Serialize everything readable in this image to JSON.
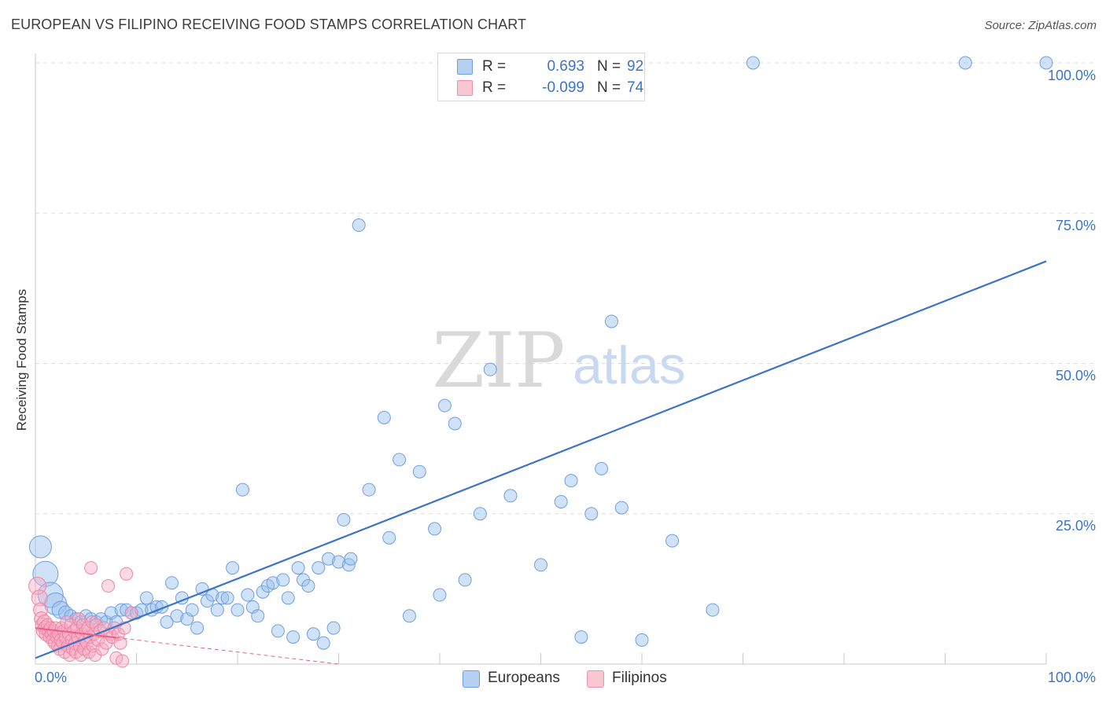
{
  "header": {
    "title": "EUROPEAN VS FILIPINO RECEIVING FOOD STAMPS CORRELATION CHART",
    "source": "Source: ZipAtlas.com"
  },
  "watermark": {
    "zip": "ZIP",
    "atlas": "atlas"
  },
  "legend": {
    "r_label": "R =",
    "n_label": "N =",
    "rows": [
      {
        "r": "0.693",
        "n": "92",
        "fill": "#b6d0f2",
        "stroke": "#6f9ee0"
      },
      {
        "r": "-0.099",
        "n": "74",
        "fill": "#f9c6d3",
        "stroke": "#ef8faa"
      }
    ]
  },
  "bottom_legend": {
    "items": [
      {
        "label": "Europeans",
        "fill": "#b6d0f2",
        "stroke": "#6f9ee0"
      },
      {
        "label": "Filipinos",
        "fill": "#f9c6d3",
        "stroke": "#ef8faa"
      }
    ]
  },
  "chart_data": {
    "type": "scatter",
    "title": "EUROPEAN VS FILIPINO RECEIVING FOOD STAMPS CORRELATION CHART",
    "xlabel": "",
    "ylabel": "Receiving Food Stamps",
    "xlim": [
      0,
      100
    ],
    "ylim": [
      0,
      100
    ],
    "x_ticks": [
      "0.0%",
      "100.0%"
    ],
    "y_ticks": [
      {
        "value": 25,
        "label": "25.0%"
      },
      {
        "value": 50,
        "label": "50.0%"
      },
      {
        "value": 75,
        "label": "75.0%"
      },
      {
        "value": 100,
        "label": "100.0%"
      }
    ],
    "grid": true,
    "legend_position": "top-center",
    "colors": {
      "europeans": "#3b73c8",
      "filipinos": "#e8608a"
    },
    "series": [
      {
        "name": "Europeans",
        "r": 0.693,
        "n": 92,
        "trend": {
          "x": [
            0,
            100
          ],
          "y": [
            1,
            67
          ]
        },
        "points": [
          {
            "x": 0.5,
            "y": 19.5,
            "s": 14
          },
          {
            "x": 1,
            "y": 15,
            "s": 16
          },
          {
            "x": 1.5,
            "y": 11.5,
            "s": 16
          },
          {
            "x": 2,
            "y": 10,
            "s": 14
          },
          {
            "x": 2.5,
            "y": 9,
            "s": 11
          },
          {
            "x": 3,
            "y": 8.5,
            "s": 9
          },
          {
            "x": 3.5,
            "y": 8,
            "s": 8
          },
          {
            "x": 4,
            "y": 7.5,
            "s": 8
          },
          {
            "x": 4.5,
            "y": 7,
            "s": 8
          },
          {
            "x": 5,
            "y": 8,
            "s": 8
          },
          {
            "x": 5.5,
            "y": 7.5,
            "s": 8
          },
          {
            "x": 6,
            "y": 7,
            "s": 8
          },
          {
            "x": 6.5,
            "y": 7.5,
            "s": 8
          },
          {
            "x": 7,
            "y": 7,
            "s": 8
          },
          {
            "x": 7.5,
            "y": 8.5,
            "s": 8
          },
          {
            "x": 8,
            "y": 7,
            "s": 8
          },
          {
            "x": 8.5,
            "y": 9,
            "s": 8
          },
          {
            "x": 9,
            "y": 9,
            "s": 8
          },
          {
            "x": 9.5,
            "y": 8.5,
            "s": 8
          },
          {
            "x": 10,
            "y": 8.5,
            "s": 8
          },
          {
            "x": 10.5,
            "y": 9,
            "s": 8
          },
          {
            "x": 11,
            "y": 11,
            "s": 8
          },
          {
            "x": 11.5,
            "y": 9,
            "s": 8
          },
          {
            "x": 12,
            "y": 9.5,
            "s": 8
          },
          {
            "x": 12.5,
            "y": 9.5,
            "s": 8
          },
          {
            "x": 13,
            "y": 7,
            "s": 8
          },
          {
            "x": 13.5,
            "y": 13.5,
            "s": 8
          },
          {
            "x": 14,
            "y": 8,
            "s": 8
          },
          {
            "x": 14.5,
            "y": 11,
            "s": 8
          },
          {
            "x": 15,
            "y": 7.5,
            "s": 8
          },
          {
            "x": 15.5,
            "y": 9,
            "s": 8
          },
          {
            "x": 16,
            "y": 6,
            "s": 8
          },
          {
            "x": 16.5,
            "y": 12.5,
            "s": 8
          },
          {
            "x": 17,
            "y": 10.5,
            "s": 8
          },
          {
            "x": 17.5,
            "y": 11.5,
            "s": 8
          },
          {
            "x": 18,
            "y": 9,
            "s": 8
          },
          {
            "x": 18.5,
            "y": 11,
            "s": 8
          },
          {
            "x": 19,
            "y": 11,
            "s": 8
          },
          {
            "x": 19.5,
            "y": 16,
            "s": 8
          },
          {
            "x": 20,
            "y": 9,
            "s": 8
          },
          {
            "x": 20.5,
            "y": 29,
            "s": 8
          },
          {
            "x": 21,
            "y": 11.5,
            "s": 8
          },
          {
            "x": 21.5,
            "y": 9.5,
            "s": 8
          },
          {
            "x": 22,
            "y": 8,
            "s": 8
          },
          {
            "x": 22.5,
            "y": 12,
            "s": 8
          },
          {
            "x": 23,
            "y": 13,
            "s": 8
          },
          {
            "x": 23.5,
            "y": 13.5,
            "s": 8
          },
          {
            "x": 24,
            "y": 5.5,
            "s": 8
          },
          {
            "x": 24.5,
            "y": 14,
            "s": 8
          },
          {
            "x": 25,
            "y": 11,
            "s": 8
          },
          {
            "x": 25.5,
            "y": 4.5,
            "s": 8
          },
          {
            "x": 26,
            "y": 16,
            "s": 8
          },
          {
            "x": 26.5,
            "y": 14,
            "s": 8
          },
          {
            "x": 27,
            "y": 13,
            "s": 8
          },
          {
            "x": 27.5,
            "y": 5,
            "s": 8
          },
          {
            "x": 28,
            "y": 16,
            "s": 8
          },
          {
            "x": 28.5,
            "y": 3.5,
            "s": 8
          },
          {
            "x": 29,
            "y": 17.5,
            "s": 8
          },
          {
            "x": 29.5,
            "y": 6,
            "s": 8
          },
          {
            "x": 30,
            "y": 17,
            "s": 8
          },
          {
            "x": 30.5,
            "y": 24,
            "s": 8
          },
          {
            "x": 31,
            "y": 16.5,
            "s": 8
          },
          {
            "x": 31.2,
            "y": 17.5,
            "s": 8
          },
          {
            "x": 32,
            "y": 73,
            "s": 8
          },
          {
            "x": 33,
            "y": 29,
            "s": 8
          },
          {
            "x": 34.5,
            "y": 41,
            "s": 8
          },
          {
            "x": 35,
            "y": 21,
            "s": 8
          },
          {
            "x": 36,
            "y": 34,
            "s": 8
          },
          {
            "x": 37,
            "y": 8,
            "s": 8
          },
          {
            "x": 38,
            "y": 32,
            "s": 8
          },
          {
            "x": 39.5,
            "y": 22.5,
            "s": 8
          },
          {
            "x": 40,
            "y": 11.5,
            "s": 8
          },
          {
            "x": 40.5,
            "y": 43,
            "s": 8
          },
          {
            "x": 41.5,
            "y": 40,
            "s": 8
          },
          {
            "x": 42.5,
            "y": 14,
            "s": 8
          },
          {
            "x": 44,
            "y": 25,
            "s": 8
          },
          {
            "x": 45,
            "y": 49,
            "s": 8
          },
          {
            "x": 47,
            "y": 28,
            "s": 8
          },
          {
            "x": 50,
            "y": 16.5,
            "s": 8
          },
          {
            "x": 52,
            "y": 27,
            "s": 8
          },
          {
            "x": 53,
            "y": 30.5,
            "s": 8
          },
          {
            "x": 54,
            "y": 4.5,
            "s": 8
          },
          {
            "x": 55,
            "y": 25,
            "s": 8
          },
          {
            "x": 56,
            "y": 32.5,
            "s": 8
          },
          {
            "x": 57,
            "y": 57,
            "s": 8
          },
          {
            "x": 58,
            "y": 26,
            "s": 8
          },
          {
            "x": 60,
            "y": 4,
            "s": 8
          },
          {
            "x": 63,
            "y": 20.5,
            "s": 8
          },
          {
            "x": 67,
            "y": 9,
            "s": 8
          },
          {
            "x": 71,
            "y": 100,
            "s": 8
          },
          {
            "x": 92,
            "y": 100,
            "s": 8
          },
          {
            "x": 100,
            "y": 100,
            "s": 8
          }
        ]
      },
      {
        "name": "Filipinos",
        "r": -0.099,
        "n": 74,
        "trend": {
          "x": [
            0,
            30
          ],
          "y": [
            6,
            0
          ]
        },
        "points": [
          {
            "x": 0.2,
            "y": 13,
            "s": 11
          },
          {
            "x": 0.4,
            "y": 11,
            "s": 10
          },
          {
            "x": 0.5,
            "y": 9,
            "s": 9
          },
          {
            "x": 0.6,
            "y": 7.5,
            "s": 9
          },
          {
            "x": 0.7,
            "y": 6.5,
            "s": 9
          },
          {
            "x": 0.8,
            "y": 5.5,
            "s": 9
          },
          {
            "x": 0.9,
            "y": 7,
            "s": 9
          },
          {
            "x": 1,
            "y": 6,
            "s": 9
          },
          {
            "x": 1.1,
            "y": 5,
            "s": 9
          },
          {
            "x": 1.2,
            "y": 6.5,
            "s": 8
          },
          {
            "x": 1.3,
            "y": 5.5,
            "s": 8
          },
          {
            "x": 1.4,
            "y": 4.5,
            "s": 8
          },
          {
            "x": 1.5,
            "y": 6,
            "s": 8
          },
          {
            "x": 1.6,
            "y": 5,
            "s": 8
          },
          {
            "x": 1.7,
            "y": 4,
            "s": 8
          },
          {
            "x": 1.8,
            "y": 5.5,
            "s": 8
          },
          {
            "x": 1.9,
            "y": 3.5,
            "s": 8
          },
          {
            "x": 2,
            "y": 6,
            "s": 8
          },
          {
            "x": 2.1,
            "y": 4.5,
            "s": 8
          },
          {
            "x": 2.2,
            "y": 3,
            "s": 8
          },
          {
            "x": 2.3,
            "y": 5,
            "s": 8
          },
          {
            "x": 2.4,
            "y": 2.5,
            "s": 8
          },
          {
            "x": 2.5,
            "y": 4,
            "s": 8
          },
          {
            "x": 2.6,
            "y": 6,
            "s": 8
          },
          {
            "x": 2.7,
            "y": 3.5,
            "s": 8
          },
          {
            "x": 2.8,
            "y": 5.5,
            "s": 8
          },
          {
            "x": 2.9,
            "y": 2,
            "s": 8
          },
          {
            "x": 3,
            "y": 4.5,
            "s": 8
          },
          {
            "x": 3.1,
            "y": 7,
            "s": 8
          },
          {
            "x": 3.2,
            "y": 3,
            "s": 8
          },
          {
            "x": 3.3,
            "y": 5,
            "s": 8
          },
          {
            "x": 3.4,
            "y": 1.5,
            "s": 8
          },
          {
            "x": 3.5,
            "y": 6.5,
            "s": 8
          },
          {
            "x": 3.6,
            "y": 4,
            "s": 8
          },
          {
            "x": 3.7,
            "y": 2.5,
            "s": 8
          },
          {
            "x": 3.8,
            "y": 5.5,
            "s": 8
          },
          {
            "x": 3.9,
            "y": 3.5,
            "s": 8
          },
          {
            "x": 4,
            "y": 2,
            "s": 8
          },
          {
            "x": 4.1,
            "y": 6,
            "s": 8
          },
          {
            "x": 4.2,
            "y": 4.5,
            "s": 8
          },
          {
            "x": 4.3,
            "y": 7.5,
            "s": 8
          },
          {
            "x": 4.4,
            "y": 3,
            "s": 8
          },
          {
            "x": 4.5,
            "y": 1.5,
            "s": 8
          },
          {
            "x": 4.6,
            "y": 5,
            "s": 8
          },
          {
            "x": 4.7,
            "y": 6.5,
            "s": 8
          },
          {
            "x": 4.8,
            "y": 2.5,
            "s": 8
          },
          {
            "x": 4.9,
            "y": 4,
            "s": 8
          },
          {
            "x": 5,
            "y": 5.5,
            "s": 8
          },
          {
            "x": 5.1,
            "y": 3.5,
            "s": 8
          },
          {
            "x": 5.2,
            "y": 6,
            "s": 8
          },
          {
            "x": 5.3,
            "y": 2,
            "s": 8
          },
          {
            "x": 5.4,
            "y": 4.5,
            "s": 8
          },
          {
            "x": 5.5,
            "y": 16,
            "s": 8
          },
          {
            "x": 5.6,
            "y": 7,
            "s": 8
          },
          {
            "x": 5.7,
            "y": 3,
            "s": 8
          },
          {
            "x": 5.8,
            "y": 5,
            "s": 8
          },
          {
            "x": 5.9,
            "y": 1.5,
            "s": 8
          },
          {
            "x": 6,
            "y": 6.5,
            "s": 8
          },
          {
            "x": 6.2,
            "y": 4,
            "s": 8
          },
          {
            "x": 6.4,
            "y": 5.5,
            "s": 8
          },
          {
            "x": 6.6,
            "y": 2.5,
            "s": 8
          },
          {
            "x": 6.8,
            "y": 6,
            "s": 8
          },
          {
            "x": 7,
            "y": 3.5,
            "s": 8
          },
          {
            "x": 7.2,
            "y": 13,
            "s": 8
          },
          {
            "x": 7.4,
            "y": 5,
            "s": 8
          },
          {
            "x": 7.6,
            "y": 4.5,
            "s": 8
          },
          {
            "x": 7.8,
            "y": 6,
            "s": 8
          },
          {
            "x": 8,
            "y": 1,
            "s": 8
          },
          {
            "x": 8.2,
            "y": 5,
            "s": 8
          },
          {
            "x": 8.4,
            "y": 3.5,
            "s": 8
          },
          {
            "x": 8.6,
            "y": 0.5,
            "s": 8
          },
          {
            "x": 8.8,
            "y": 6,
            "s": 8
          },
          {
            "x": 9,
            "y": 15,
            "s": 8
          },
          {
            "x": 9.5,
            "y": 8.5,
            "s": 8
          }
        ]
      }
    ]
  }
}
